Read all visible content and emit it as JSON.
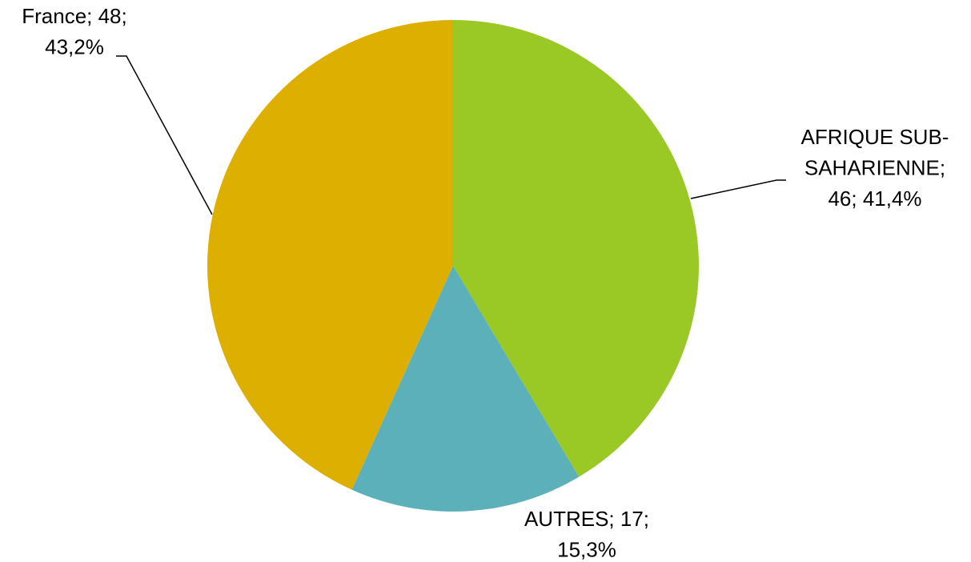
{
  "chart_data": {
    "type": "pie",
    "values": [
      46,
      17,
      48
    ],
    "labels": [
      [
        "AFRIQUE SUB-",
        "SAHARIENNE;",
        "46; 41,4%"
      ],
      [
        "AUTRES; 17;",
        "15,3%"
      ],
      [
        "France; 48;",
        "43,2%"
      ]
    ],
    "colors": [
      "#9ac824",
      "#5bb0b9",
      "#dcaf00"
    ]
  }
}
